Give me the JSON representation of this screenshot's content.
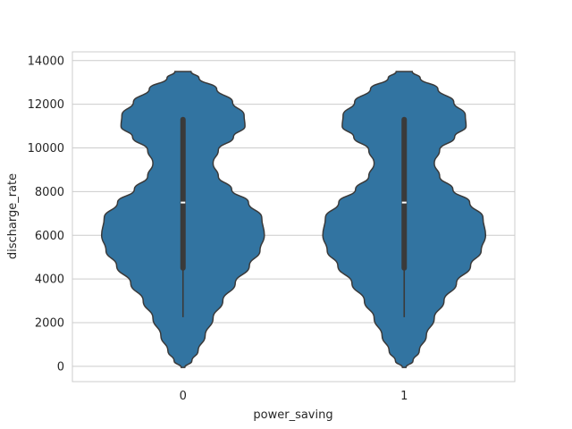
{
  "chart_data": {
    "type": "violin",
    "xlabel": "power_saving",
    "ylabel": "discharge_rate",
    "categories": [
      "0",
      "1"
    ],
    "ylim": [
      -700,
      14400
    ],
    "yticks": [
      0,
      2000,
      4000,
      6000,
      8000,
      10000,
      12000,
      14000
    ],
    "ytick_labels": [
      "0",
      "2000",
      "4000",
      "6000",
      "8000",
      "10000",
      "12000",
      "14000"
    ],
    "grid": "horizontal",
    "violin_color": "#3274a1",
    "outline_color": "#3a3a3a",
    "violins": [
      {
        "category": "0",
        "min": 2250,
        "q1": 4500,
        "median": 7500,
        "q3": 11300,
        "max": 11300,
        "density_profile": [
          [
            -50,
            0.02
          ],
          [
            250,
            0.1
          ],
          [
            700,
            0.17
          ],
          [
            1400,
            0.25
          ],
          [
            2200,
            0.34
          ],
          [
            3000,
            0.45
          ],
          [
            3800,
            0.59
          ],
          [
            4600,
            0.75
          ],
          [
            5300,
            0.87
          ],
          [
            6000,
            0.92
          ],
          [
            6800,
            0.89
          ],
          [
            7500,
            0.74
          ],
          [
            8100,
            0.55
          ],
          [
            8700,
            0.4
          ],
          [
            9300,
            0.34
          ],
          [
            9900,
            0.4
          ],
          [
            10500,
            0.57
          ],
          [
            11000,
            0.7
          ],
          [
            11500,
            0.69
          ],
          [
            12100,
            0.56
          ],
          [
            12700,
            0.38
          ],
          [
            13200,
            0.18
          ],
          [
            13500,
            0.09
          ]
        ]
      },
      {
        "category": "1",
        "min": 2250,
        "q1": 4500,
        "median": 7500,
        "q3": 11300,
        "max": 11300,
        "density_profile": [
          [
            -50,
            0.02
          ],
          [
            250,
            0.1
          ],
          [
            700,
            0.17
          ],
          [
            1400,
            0.25
          ],
          [
            2200,
            0.34
          ],
          [
            3000,
            0.45
          ],
          [
            3800,
            0.59
          ],
          [
            4600,
            0.75
          ],
          [
            5300,
            0.87
          ],
          [
            6000,
            0.92
          ],
          [
            6800,
            0.89
          ],
          [
            7500,
            0.74
          ],
          [
            8100,
            0.55
          ],
          [
            8700,
            0.4
          ],
          [
            9300,
            0.34
          ],
          [
            9900,
            0.4
          ],
          [
            10500,
            0.57
          ],
          [
            11000,
            0.7
          ],
          [
            11500,
            0.69
          ],
          [
            12100,
            0.56
          ],
          [
            12700,
            0.38
          ],
          [
            13200,
            0.18
          ],
          [
            13500,
            0.09
          ]
        ]
      }
    ]
  }
}
